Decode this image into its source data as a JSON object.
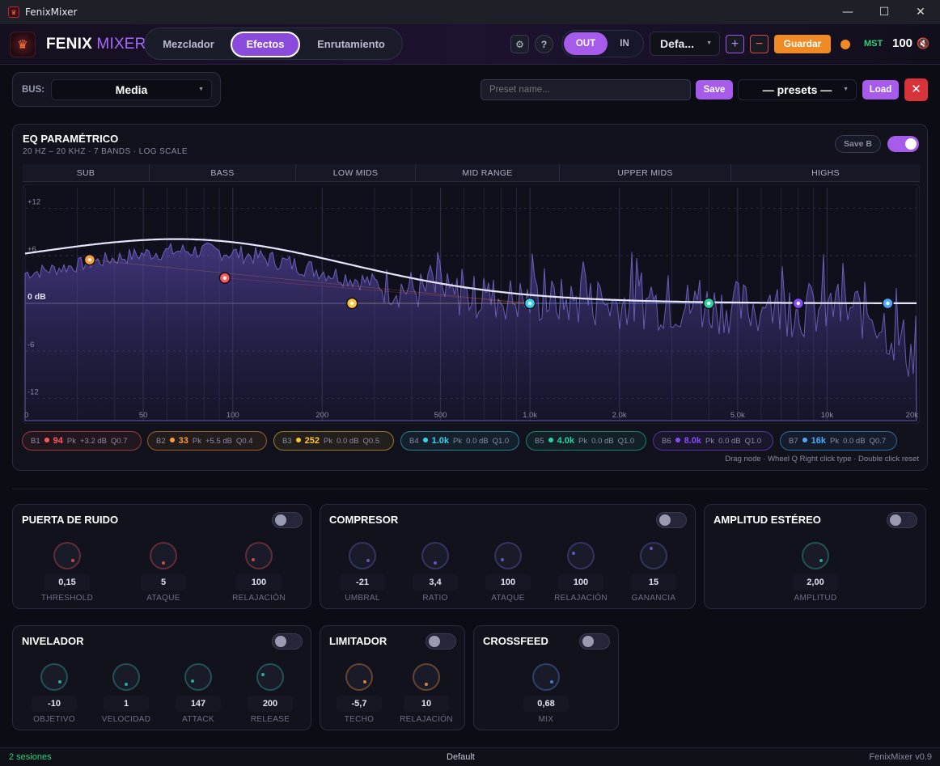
{
  "window": {
    "title": "FenixMixer",
    "minimize": "—",
    "maximize": "☐",
    "close": "✕"
  },
  "header": {
    "brand_part1": "FENIX",
    "brand_part2": " MIXER",
    "tabs": [
      {
        "label": "Mezclador"
      },
      {
        "label": "Efectos"
      },
      {
        "label": "Enrutamiento"
      }
    ],
    "settings_icon": "⚙",
    "help_icon": "?",
    "out_label": "OUT",
    "in_label": "IN",
    "device_selected": "Defa...",
    "add_label": "+",
    "remove_label": "−",
    "save_label": "Guardar",
    "master_label": "MST",
    "master_volume": "100",
    "speaker_icon": "🔇"
  },
  "toolbar": {
    "bus_label": "BUS:",
    "bus_selected": "Media",
    "preset_placeholder": "Preset name...",
    "save_label": "Save",
    "presets_selected": "— presets —",
    "load_label": "Load",
    "close_icon": "✕"
  },
  "eq": {
    "title": "EQ PARAMÉTRICO",
    "subtitle": "20 HZ – 20 KHZ · 7 BANDS · LOG SCALE",
    "save_b_label": "Save B",
    "enabled": true,
    "regions": [
      "SUB",
      "BASS",
      "LOW MIDS",
      "MID RANGE",
      "UPPER MIDS",
      "HIGHS"
    ],
    "db_ticks": [
      "+12",
      "+6",
      "0 dB",
      "-6",
      "-12"
    ],
    "freq_ticks": [
      "0",
      "50",
      "100",
      "200",
      "500",
      "1.0k",
      "2.0k",
      "5.0k",
      "10k",
      "20k"
    ],
    "bands": [
      {
        "id": "B1",
        "freq_label": "94",
        "type": "Pk",
        "gain_label": "+3.2 dB",
        "q_label": "Q0.7",
        "freq": 94,
        "gain": 3.2,
        "color": "#ff5a5a"
      },
      {
        "id": "B2",
        "freq_label": "33",
        "type": "Pk",
        "gain_label": "+5.5 dB",
        "q_label": "Q0.4",
        "freq": 33,
        "gain": 5.5,
        "color": "#ff9a3a"
      },
      {
        "id": "B3",
        "freq_label": "252",
        "type": "Pk",
        "gain_label": "0.0 dB",
        "q_label": "Q0.5",
        "freq": 252,
        "gain": 0,
        "color": "#ffc53a"
      },
      {
        "id": "B4",
        "freq_label": "1.0k",
        "type": "Pk",
        "gain_label": "0.0 dB",
        "q_label": "Q1.0",
        "freq": 1000,
        "gain": 0,
        "color": "#3ad0f0"
      },
      {
        "id": "B5",
        "freq_label": "4.0k",
        "type": "Pk",
        "gain_label": "0.0 dB",
        "q_label": "Q1.0",
        "freq": 4000,
        "gain": 0,
        "color": "#2ad4a0"
      },
      {
        "id": "B6",
        "freq_label": "8.0k",
        "type": "Pk",
        "gain_label": "0.0 dB",
        "q_label": "Q1.0",
        "freq": 8000,
        "gain": 0,
        "color": "#8a4bff"
      },
      {
        "id": "B7",
        "freq_label": "16k",
        "type": "Pk",
        "gain_label": "0.0 dB",
        "q_label": "Q0.7",
        "freq": 16000,
        "gain": 0,
        "color": "#4aa8ff"
      }
    ],
    "hint": "Drag node · Wheel Q    Right click type · Double click reset"
  },
  "effects": {
    "gate": {
      "title": "PUERTA DE RUIDO",
      "color": "#c84a52",
      "knobs": [
        {
          "label": "THRESHOLD",
          "value": "0,15"
        },
        {
          "label": "ATAQUE",
          "value": "5"
        },
        {
          "label": "RELAJACIÓN",
          "value": "100"
        }
      ]
    },
    "compressor": {
      "title": "COMPRESOR",
      "color": "#5a5ab8",
      "knobs": [
        {
          "label": "UMBRAL",
          "value": "-21"
        },
        {
          "label": "RATIO",
          "value": "3,4"
        },
        {
          "label": "ATAQUE",
          "value": "100"
        },
        {
          "label": "RELAJACIÓN",
          "value": "100"
        },
        {
          "label": "GANANCIA",
          "value": "15"
        }
      ]
    },
    "stereo": {
      "title": "AMPLITUD ESTÉREO",
      "color": "#2aa89a",
      "knobs": [
        {
          "label": "AMPLITUD",
          "value": "2,00"
        }
      ]
    },
    "leveler": {
      "title": "NIVELADOR",
      "color": "#2aa89a",
      "knobs": [
        {
          "label": "OBJETIVO",
          "value": "-10"
        },
        {
          "label": "VELOCIDAD",
          "value": "1"
        },
        {
          "label": "ATTACK",
          "value": "147"
        },
        {
          "label": "RELEASE",
          "value": "200"
        }
      ]
    },
    "limiter": {
      "title": "LIMITADOR",
      "color": "#d8843a",
      "knobs": [
        {
          "label": "TECHO",
          "value": "-5,7"
        },
        {
          "label": "RELAJACIÓN",
          "value": "10"
        }
      ]
    },
    "crossfeed": {
      "title": "CROSSFEED",
      "color": "#4a7ad8",
      "knobs": [
        {
          "label": "MIX",
          "value": "0,68"
        }
      ]
    }
  },
  "status": {
    "sessions": "2 sesiones",
    "profile": "Default",
    "version": "FenixMixer v0.9"
  }
}
